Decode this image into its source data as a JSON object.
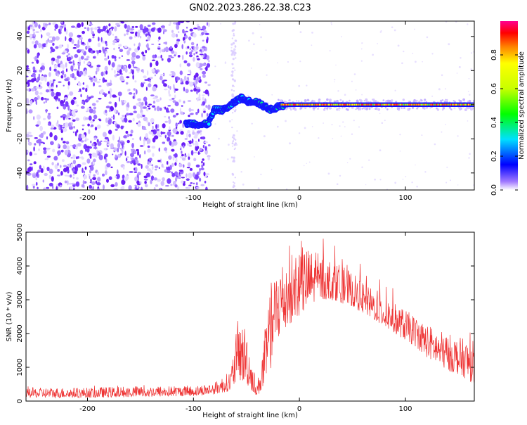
{
  "title": "GN02.2023.286.22.38.C23",
  "chart_data": [
    {
      "type": "heatmap",
      "xlabel": "Height of straight line (km)",
      "ylabel": "Frequency (Hz)",
      "xlim": [
        -258,
        165
      ],
      "ylim": [
        -50,
        49
      ],
      "xticks": [
        -200,
        -100,
        0,
        100
      ],
      "yticks": [
        -40,
        -20,
        0,
        20,
        40
      ],
      "colorbar": {
        "label": "Normalized spectral amplitude",
        "range": [
          0,
          1
        ],
        "ticks": [
          0.0,
          0.2,
          0.4,
          0.6,
          0.8
        ]
      },
      "features": {
        "noise_region_x": [
          -258,
          -85
        ],
        "signal_track": [
          [
            -107,
            -11
          ],
          [
            -98,
            -11
          ],
          [
            -92,
            -12
          ],
          [
            -86,
            -11
          ],
          [
            -80,
            -3
          ],
          [
            -72,
            -3
          ],
          [
            -66,
            -1
          ],
          [
            -60,
            2
          ],
          [
            -55,
            4
          ],
          [
            -50,
            2
          ],
          [
            -42,
            2
          ],
          [
            -36,
            0
          ],
          [
            -30,
            -2
          ],
          [
            -26,
            -3
          ],
          [
            -20,
            -1
          ],
          [
            -10,
            0
          ],
          [
            0,
            0
          ],
          [
            50,
            0
          ],
          [
            100,
            0
          ],
          [
            165,
            0
          ]
        ]
      }
    },
    {
      "type": "line",
      "xlabel": "Height of straight line (km)",
      "ylabel": "SNR (10 * v/v)",
      "xlim": [
        -258,
        165
      ],
      "ylim": [
        0,
        5000
      ],
      "xticks": [
        -200,
        -100,
        0,
        100
      ],
      "yticks": [
        0,
        1000,
        2000,
        3000,
        4000,
        5000
      ],
      "color": "#ee3333",
      "envelope": {
        "x": [
          -258,
          -200,
          -150,
          -100,
          -80,
          -65,
          -60,
          -55,
          -50,
          -45,
          -40,
          -35,
          -30,
          -25,
          -20,
          -10,
          0,
          10,
          20,
          30,
          40,
          50,
          60,
          70,
          80,
          90,
          100,
          110,
          120,
          130,
          140,
          150,
          160,
          165
        ],
        "lo": [
          100,
          100,
          120,
          150,
          200,
          300,
          500,
          600,
          500,
          300,
          150,
          300,
          600,
          1200,
          1800,
          2200,
          2500,
          2800,
          3000,
          3000,
          2900,
          2800,
          2600,
          2400,
          2200,
          2000,
          1800,
          1600,
          1300,
          1100,
          900,
          800,
          600,
          500
        ],
        "hi": [
          400,
          400,
          450,
          450,
          550,
          900,
          2000,
          2400,
          2200,
          1200,
          500,
          1500,
          2800,
          3600,
          4200,
          4400,
          4700,
          4500,
          4300,
          4200,
          4000,
          3800,
          3500,
          3300,
          3100,
          2900,
          2700,
          2500,
          2300,
          2100,
          2000,
          1900,
          1800,
          1700
        ]
      }
    }
  ]
}
